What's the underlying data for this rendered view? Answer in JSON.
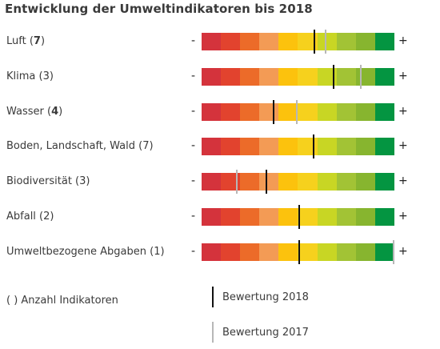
{
  "title": "Entwicklung der Umweltindikatoren bis 2018",
  "scale": {
    "min_label": "-",
    "max_label": "+",
    "colors": [
      "#d4333c",
      "#e2432e",
      "#ec6b29",
      "#f39b55",
      "#fcc20d",
      "#f6d11d",
      "#c8d624",
      "#a2c335",
      "#87b52f",
      "#049541"
    ]
  },
  "legend": {
    "count_note": "( ) Anzahl Indikatoren",
    "items": [
      {
        "label": "Bewertung 2018",
        "color": "#111111"
      },
      {
        "label": "Bewertung 2017",
        "color": "#b7b7b7"
      }
    ]
  },
  "chart_data": {
    "type": "bar",
    "title": "Entwicklung der Umweltindikatoren bis 2018",
    "scale_range": [
      0,
      1
    ],
    "categories": [
      "Luft (7)",
      "Klima (3)",
      "Wasser (4)",
      "Boden, Landschaft, Wald (7)",
      "Biodiversität (3)",
      "Abfall (2)",
      "Umweltbezogene Abgaben (1)"
    ],
    "rows": [
      {
        "name": "Luft",
        "count": "7",
        "count_bold": true,
        "v2018": 0.58,
        "v2017": 0.64
      },
      {
        "name": "Klima",
        "count": "3",
        "count_bold": false,
        "v2018": 0.68,
        "v2017": 0.82
      },
      {
        "name": "Wasser",
        "count": "4",
        "count_bold": true,
        "v2018": 0.37,
        "v2017": 0.49
      },
      {
        "name": "Boden, Landschaft, Wald",
        "count": "7",
        "count_bold": false,
        "v2018": 0.575,
        "v2017": 0.575
      },
      {
        "name": "Biodiversität",
        "count": "3",
        "count_bold": false,
        "v2018": 0.33,
        "v2017": 0.18
      },
      {
        "name": "Abfall",
        "count": "2",
        "count_bold": false,
        "v2018": 0.5,
        "v2017": 0.5
      },
      {
        "name": "Umweltbezogene Abgaben",
        "count": "1",
        "count_bold": false,
        "v2018": 0.5,
        "v2017": 1.0
      }
    ],
    "series": [
      {
        "name": "Bewertung 2018",
        "values": [
          0.58,
          0.68,
          0.37,
          0.575,
          0.33,
          0.5,
          0.5
        ]
      },
      {
        "name": "Bewertung 2017",
        "values": [
          0.64,
          0.82,
          0.49,
          0.575,
          0.18,
          0.5,
          1.0
        ]
      }
    ]
  }
}
